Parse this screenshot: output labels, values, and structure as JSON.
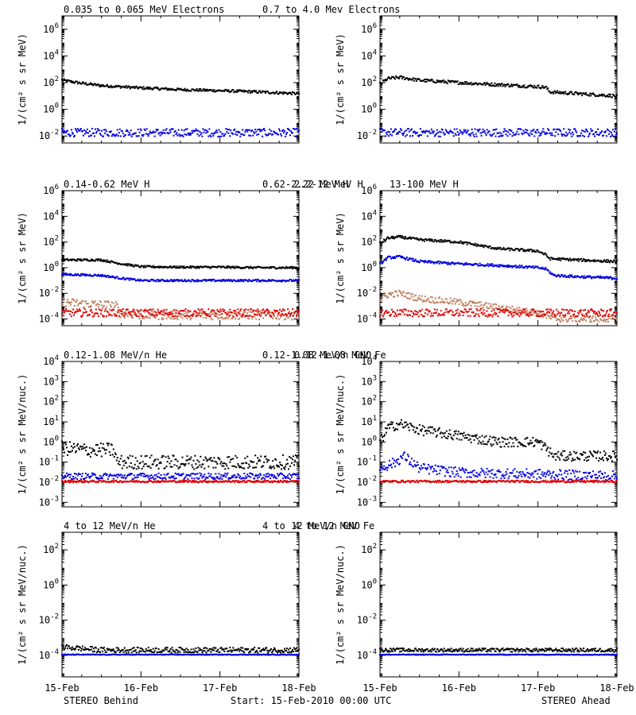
{
  "colors": {
    "black": "#000000",
    "blue": "#0000e0",
    "tan": "#c08060",
    "red": "#e00000"
  },
  "footer": {
    "left": "STEREO Behind",
    "center": "Start: 15-Feb-2010 00:00 UTC",
    "right": "STEREO Ahead"
  },
  "chart_data": [
    {
      "type": "scatter",
      "panel": "electrons-behind",
      "column": "behind",
      "yscale": "log",
      "ylim": [
        0.003,
        10000000
      ],
      "ylabel": "1/(cm² s sr MeV)",
      "yticks": [
        {
          "exp": "-2",
          "v": 0.01
        },
        {
          "exp": "0",
          "v": 1
        },
        {
          "exp": "2",
          "v": 100
        },
        {
          "exp": "4",
          "v": 10000
        },
        {
          "exp": "6",
          "v": 1000000
        }
      ],
      "xlim": [
        0,
        3
      ],
      "xticks": [
        {
          "v": 0,
          "label": "15-Feb"
        },
        {
          "v": 1,
          "label": "16-Feb"
        },
        {
          "v": 2,
          "label": "17-Feb"
        },
        {
          "v": 3,
          "label": "18-Feb"
        }
      ],
      "legend": [
        {
          "name": "0.035 to 0.065 MeV Electrons",
          "color": "black"
        },
        {
          "name": "0.7 to 4.0 Mev Electrons",
          "color": "blue"
        }
      ],
      "series": [
        {
          "name": "0.035 to 0.065 MeV Electrons",
          "color": "black",
          "x": [
            0,
            0.25,
            0.5,
            1,
            1.5,
            2,
            2.5,
            3
          ],
          "y": [
            150,
            90,
            60,
            40,
            30,
            25,
            20,
            15
          ],
          "jitter": 0.1
        },
        {
          "name": "0.7 to 4.0 Mev Electrons",
          "color": "blue",
          "x": [
            0,
            1,
            2,
            3
          ],
          "y": [
            0.018,
            0.018,
            0.018,
            0.018
          ],
          "jitter": 0.3
        }
      ]
    },
    {
      "type": "scatter",
      "panel": "electrons-ahead",
      "column": "ahead",
      "yscale": "log",
      "ylim": [
        0.003,
        10000000
      ],
      "ylabel": "1/(cm² s sr MeV)",
      "yticks": [
        {
          "exp": "-2",
          "v": 0.01
        },
        {
          "exp": "0",
          "v": 1
        },
        {
          "exp": "2",
          "v": 100
        },
        {
          "exp": "4",
          "v": 10000
        },
        {
          "exp": "6",
          "v": 1000000
        }
      ],
      "xlim": [
        0,
        3
      ],
      "xticks": [
        {
          "v": 0,
          "label": "15-Feb"
        },
        {
          "v": 1,
          "label": "16-Feb"
        },
        {
          "v": 2,
          "label": "17-Feb"
        },
        {
          "v": 3,
          "label": "18-Feb"
        }
      ],
      "legend": [],
      "series": [
        {
          "name": "0.035 to 0.065 MeV Electrons",
          "color": "black",
          "x": [
            0,
            0.1,
            0.25,
            0.5,
            1,
            1.5,
            2,
            2.1,
            2.15,
            2.5,
            3
          ],
          "y": [
            80,
            200,
            250,
            150,
            100,
            70,
            50,
            45,
            20,
            15,
            10
          ],
          "jitter": 0.12
        },
        {
          "name": "0.7 to 4.0 Mev Electrons",
          "color": "blue",
          "x": [
            0,
            1,
            2,
            3
          ],
          "y": [
            0.018,
            0.018,
            0.018,
            0.018
          ],
          "jitter": 0.3
        }
      ]
    },
    {
      "type": "scatter",
      "panel": "protons-behind",
      "column": "behind",
      "yscale": "log",
      "ylim": [
        3e-05,
        1000000
      ],
      "ylabel": "1/(cm² s sr MeV)",
      "yticks": [
        {
          "exp": "-4",
          "v": 0.0001
        },
        {
          "exp": "-2",
          "v": 0.01
        },
        {
          "exp": "0",
          "v": 1
        },
        {
          "exp": "2",
          "v": 100
        },
        {
          "exp": "4",
          "v": 10000
        },
        {
          "exp": "6",
          "v": 1000000
        }
      ],
      "xlim": [
        0,
        3
      ],
      "xticks": [
        {
          "v": 0,
          "label": "15-Feb"
        },
        {
          "v": 1,
          "label": "16-Feb"
        },
        {
          "v": 2,
          "label": "17-Feb"
        },
        {
          "v": 3,
          "label": "18-Feb"
        }
      ],
      "legend": [
        {
          "name": "0.14-0.62 MeV H",
          "color": "black"
        },
        {
          "name": "0.62-2.22 MeV H",
          "color": "blue"
        },
        {
          "name": "2.2-12 MeV H",
          "color": "tan"
        },
        {
          "name": "13-100 MeV H",
          "color": "red"
        }
      ],
      "series": [
        {
          "name": "0.14-0.62 MeV H",
          "color": "black",
          "x": [
            0,
            0.5,
            0.75,
            1,
            1.5,
            2,
            2.5,
            3
          ],
          "y": [
            4,
            4,
            2,
            1.2,
            1.1,
            1.1,
            1,
            1
          ],
          "jitter": 0.08
        },
        {
          "name": "0.62-2.22 MeV H",
          "color": "blue",
          "x": [
            0,
            0.5,
            0.75,
            1,
            1.5,
            2,
            3
          ],
          "y": [
            0.3,
            0.25,
            0.15,
            0.1,
            0.1,
            0.1,
            0.1
          ],
          "jitter": 0.08
        },
        {
          "name": "2.2-12 MeV H",
          "color": "tan",
          "x": [
            0,
            0.3,
            0.6,
            0.7,
            0.72,
            1,
            2,
            3
          ],
          "y": [
            0.002,
            0.0015,
            0.0012,
            0.001,
            0.0003,
            0.0002,
            0.0002,
            0.0002
          ],
          "jitter": 0.35
        },
        {
          "name": "13-100 MeV H",
          "color": "red",
          "x": [
            0,
            1,
            2,
            3
          ],
          "y": [
            0.0003,
            0.0003,
            0.0003,
            0.0003
          ],
          "jitter": 0.3
        }
      ]
    },
    {
      "type": "scatter",
      "panel": "protons-ahead",
      "column": "ahead",
      "yscale": "log",
      "ylim": [
        3e-05,
        1000000
      ],
      "ylabel": "1/(cm² s sr MeV)",
      "yticks": [
        {
          "exp": "-4",
          "v": 0.0001
        },
        {
          "exp": "-2",
          "v": 0.01
        },
        {
          "exp": "0",
          "v": 1
        },
        {
          "exp": "2",
          "v": 100
        },
        {
          "exp": "4",
          "v": 10000
        },
        {
          "exp": "6",
          "v": 1000000
        }
      ],
      "xlim": [
        0,
        3
      ],
      "xticks": [
        {
          "v": 0,
          "label": "15-Feb"
        },
        {
          "v": 1,
          "label": "16-Feb"
        },
        {
          "v": 2,
          "label": "17-Feb"
        },
        {
          "v": 3,
          "label": "18-Feb"
        }
      ],
      "legend": [],
      "series": [
        {
          "name": "0.14-0.62 MeV H",
          "color": "black",
          "x": [
            0,
            0.1,
            0.25,
            0.5,
            1,
            1.5,
            2,
            2.1,
            2.15,
            2.5,
            3
          ],
          "y": [
            80,
            200,
            250,
            150,
            100,
            30,
            20,
            10,
            5,
            4,
            3
          ],
          "jitter": 0.1
        },
        {
          "name": "0.62-2.22 MeV H",
          "color": "blue",
          "x": [
            0,
            0.1,
            0.25,
            0.5,
            1,
            1.5,
            2,
            2.1,
            2.2,
            2.5,
            3
          ],
          "y": [
            2,
            6,
            7,
            3,
            2,
            1.5,
            1,
            0.8,
            0.25,
            0.2,
            0.15
          ],
          "jitter": 0.1
        },
        {
          "name": "2.2-12 MeV H",
          "color": "tan",
          "x": [
            0,
            0.1,
            0.25,
            0.5,
            1,
            1.5,
            2,
            2.2,
            3
          ],
          "y": [
            0.003,
            0.008,
            0.01,
            0.004,
            0.002,
            0.0008,
            0.0003,
            0.0001,
            0.0001
          ],
          "jitter": 0.25
        },
        {
          "name": "13-100 MeV H",
          "color": "red",
          "x": [
            0,
            1,
            2,
            3
          ],
          "y": [
            0.0003,
            0.0003,
            0.0003,
            0.0003
          ],
          "jitter": 0.3
        }
      ]
    },
    {
      "type": "scatter",
      "panel": "heavy-low-behind",
      "column": "behind",
      "yscale": "log",
      "ylim": [
        0.0006,
        10000
      ],
      "ylabel": "1/(cm² s sr MeV/nuc.)",
      "yticks": [
        {
          "exp": "-3",
          "v": 0.001
        },
        {
          "exp": "-2",
          "v": 0.01
        },
        {
          "exp": "-1",
          "v": 0.1
        },
        {
          "exp": "0",
          "v": 1
        },
        {
          "exp": "1",
          "v": 10
        },
        {
          "exp": "2",
          "v": 100
        },
        {
          "exp": "3",
          "v": 1000
        },
        {
          "exp": "4",
          "v": 10000
        }
      ],
      "xlim": [
        0,
        3
      ],
      "xticks": [
        {
          "v": 0,
          "label": "15-Feb"
        },
        {
          "v": 1,
          "label": "16-Feb"
        },
        {
          "v": 2,
          "label": "17-Feb"
        },
        {
          "v": 3,
          "label": "18-Feb"
        }
      ],
      "legend": [
        {
          "name": "0.12-1.08 MeV/n He",
          "color": "black"
        },
        {
          "name": "0.12-1.08 MeV/n CNO",
          "color": "blue"
        },
        {
          "name": "0.12-1.08 MeV Fe",
          "color": "red"
        }
      ],
      "series": [
        {
          "name": "0.12-1.08 MeV/n He",
          "color": "black",
          "x": [
            0,
            0.3,
            0.65,
            0.7,
            1,
            2,
            3
          ],
          "y": [
            0.5,
            0.4,
            0.4,
            0.1,
            0.1,
            0.1,
            0.1
          ],
          "jitter": 0.35
        },
        {
          "name": "0.12-1.08 MeV/n CNO",
          "color": "blue",
          "x": [
            0,
            3
          ],
          "y": [
            0.02,
            0.02
          ],
          "jitter": 0.15
        },
        {
          "name": "0.12-1.08 MeV Fe",
          "color": "red",
          "x": [
            0,
            3
          ],
          "y": [
            0.011,
            0.011
          ],
          "jitter": 0.05
        }
      ]
    },
    {
      "type": "scatter",
      "panel": "heavy-low-ahead",
      "column": "ahead",
      "yscale": "log",
      "ylim": [
        0.0006,
        10000
      ],
      "ylabel": "1/(cm² s sr MeV/nuc.)",
      "yticks": [
        {
          "exp": "-3",
          "v": 0.001
        },
        {
          "exp": "-2",
          "v": 0.01
        },
        {
          "exp": "-1",
          "v": 0.1
        },
        {
          "exp": "0",
          "v": 1
        },
        {
          "exp": "1",
          "v": 10
        },
        {
          "exp": "2",
          "v": 100
        },
        {
          "exp": "3",
          "v": 1000
        },
        {
          "exp": "4",
          "v": 10000
        }
      ],
      "xlim": [
        0,
        3
      ],
      "xticks": [
        {
          "v": 0,
          "label": "15-Feb"
        },
        {
          "v": 1,
          "label": "16-Feb"
        },
        {
          "v": 2,
          "label": "17-Feb"
        },
        {
          "v": 3,
          "label": "18-Feb"
        }
      ],
      "legend": [],
      "series": [
        {
          "name": "0.12-1.08 MeV/n He",
          "color": "black",
          "x": [
            0,
            0.1,
            0.25,
            0.5,
            1,
            1.5,
            2,
            2.1,
            2.2,
            2.5,
            3
          ],
          "y": [
            1,
            5,
            8,
            4,
            2,
            1,
            1,
            0.5,
            0.2,
            0.2,
            0.2
          ],
          "jitter": 0.25
        },
        {
          "name": "0.12-1.08 MeV/n CNO",
          "color": "blue",
          "x": [
            0,
            0.2,
            0.3,
            0.5,
            1,
            2,
            3
          ],
          "y": [
            0.05,
            0.1,
            0.2,
            0.05,
            0.03,
            0.025,
            0.02
          ],
          "jitter": 0.25
        },
        {
          "name": "0.12-1.08 MeV Fe",
          "color": "red",
          "x": [
            0,
            3
          ],
          "y": [
            0.011,
            0.011
          ],
          "jitter": 0.05
        }
      ]
    },
    {
      "type": "scatter",
      "panel": "heavy-high-behind",
      "column": "behind",
      "yscale": "log",
      "ylim": [
        6e-06,
        1000
      ],
      "ylabel": "1/(cm² s sr MeV/nuc.)",
      "yticks": [
        {
          "exp": "-4",
          "v": 0.0001
        },
        {
          "exp": "-2",
          "v": 0.01
        },
        {
          "exp": "0",
          "v": 1
        },
        {
          "exp": "2",
          "v": 100
        }
      ],
      "xlim": [
        0,
        3
      ],
      "xticks": [
        {
          "v": 0,
          "label": "15-Feb"
        },
        {
          "v": 1,
          "label": "16-Feb"
        },
        {
          "v": 2,
          "label": "17-Feb"
        },
        {
          "v": 3,
          "label": "18-Feb"
        }
      ],
      "legend": [
        {
          "name": "4 to 12 MeV/n He",
          "color": "black"
        },
        {
          "name": "4 to 12 MeV/n CNO",
          "color": "blue"
        },
        {
          "name": "4 to 12 MeV Fe",
          "color": "red"
        }
      ],
      "series": [
        {
          "name": "4 to 12 MeV/n He",
          "color": "black",
          "x": [
            0,
            0.5,
            1,
            2,
            3
          ],
          "y": [
            0.0003,
            0.0002,
            0.0002,
            0.0002,
            0.0002
          ],
          "jitter": 0.15
        },
        {
          "name": "4 to 12 MeV/n CNO",
          "color": "blue",
          "x": [
            0,
            3
          ],
          "y": [
            0.00011,
            0.00011
          ],
          "jitter": 0.02
        }
      ]
    },
    {
      "type": "scatter",
      "panel": "heavy-high-ahead",
      "column": "ahead",
      "yscale": "log",
      "ylim": [
        6e-06,
        1000
      ],
      "ylabel": "1/(cm² s sr MeV/nuc.)",
      "yticks": [
        {
          "exp": "-4",
          "v": 0.0001
        },
        {
          "exp": "-2",
          "v": 0.01
        },
        {
          "exp": "0",
          "v": 1
        },
        {
          "exp": "2",
          "v": 100
        }
      ],
      "xlim": [
        0,
        3
      ],
      "xticks": [
        {
          "v": 0,
          "label": "15-Feb"
        },
        {
          "v": 1,
          "label": "16-Feb"
        },
        {
          "v": 2,
          "label": "17-Feb"
        },
        {
          "v": 3,
          "label": "18-Feb"
        }
      ],
      "legend": [],
      "series": [
        {
          "name": "4 to 12 MeV/n He",
          "color": "black",
          "x": [
            0,
            1,
            2,
            3
          ],
          "y": [
            0.0002,
            0.0002,
            0.0002,
            0.0002
          ],
          "jitter": 0.1
        },
        {
          "name": "4 to 12 MeV/n CNO",
          "color": "blue",
          "x": [
            0,
            3
          ],
          "y": [
            0.00011,
            0.00011
          ],
          "jitter": 0.02
        }
      ]
    }
  ]
}
